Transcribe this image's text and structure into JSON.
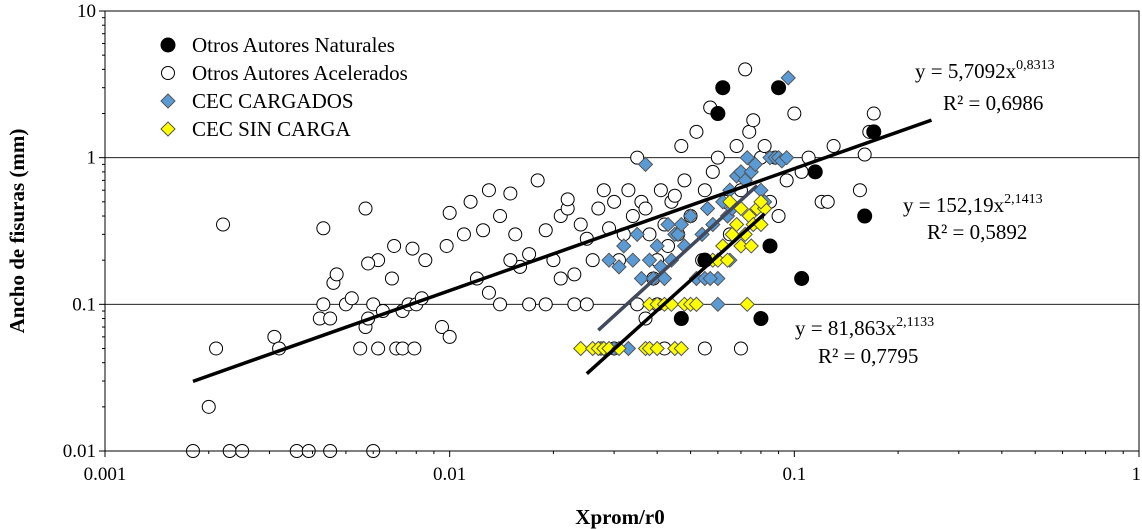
{
  "chart_data": {
    "type": "scatter",
    "xscale": "log",
    "yscale": "log",
    "xlim": [
      0.001,
      1
    ],
    "ylim": [
      0.01,
      10
    ],
    "xlabel": "Xprom/r0",
    "ylabel": "Ancho de fisuras (mm)",
    "x_tick_labels": [
      "0.001",
      "0.01",
      "0.1",
      "1"
    ],
    "y_tick_labels": [
      "0.01",
      "0.1",
      "1",
      "10"
    ],
    "legend_position": "top-left",
    "colors": {
      "naturales": "#000000",
      "acelerados": "#ffffff",
      "cargados": "#5b9bd5",
      "sin_carga": "#ffff00",
      "trend_global": "#000000",
      "trend_cargados": "#404a5c",
      "trend_sin_carga": "#000000"
    },
    "series": [
      {
        "key": "naturales",
        "name": "Otros Autores Naturales",
        "marker": "circle-filled",
        "points": [
          [
            0.047,
            0.08
          ],
          [
            0.055,
            0.2
          ],
          [
            0.06,
            2.0
          ],
          [
            0.062,
            3.0
          ],
          [
            0.08,
            0.08
          ],
          [
            0.085,
            0.25
          ],
          [
            0.09,
            3.0
          ],
          [
            0.105,
            0.15
          ],
          [
            0.115,
            0.8
          ],
          [
            0.16,
            0.4
          ],
          [
            0.17,
            1.5
          ]
        ]
      },
      {
        "key": "acelerados",
        "name": "Otros Autores Acelerados",
        "marker": "circle-open",
        "points": [
          [
            0.0018,
            0.01
          ],
          [
            0.0023,
            0.01
          ],
          [
            0.0025,
            0.01
          ],
          [
            0.0036,
            0.01
          ],
          [
            0.0039,
            0.01
          ],
          [
            0.0045,
            0.01
          ],
          [
            0.006,
            0.01
          ],
          [
            0.002,
            0.02
          ],
          [
            0.0021,
            0.05
          ],
          [
            0.0031,
            0.06
          ],
          [
            0.0032,
            0.05
          ],
          [
            0.0055,
            0.05
          ],
          [
            0.0062,
            0.05
          ],
          [
            0.007,
            0.05
          ],
          [
            0.0073,
            0.05
          ],
          [
            0.0079,
            0.05
          ],
          [
            0.0095,
            0.07
          ],
          [
            0.01,
            0.06
          ],
          [
            0.0057,
            0.07
          ],
          [
            0.0042,
            0.08
          ],
          [
            0.0045,
            0.08
          ],
          [
            0.0043,
            0.1
          ],
          [
            0.005,
            0.1
          ],
          [
            0.0052,
            0.11
          ],
          [
            0.0046,
            0.14
          ],
          [
            0.0047,
            0.16
          ],
          [
            0.0058,
            0.08
          ],
          [
            0.006,
            0.1
          ],
          [
            0.0064,
            0.09
          ],
          [
            0.0068,
            0.15
          ],
          [
            0.0073,
            0.09
          ],
          [
            0.0076,
            0.1
          ],
          [
            0.008,
            0.1
          ],
          [
            0.0083,
            0.11
          ],
          [
            0.0085,
            0.2
          ],
          [
            0.0078,
            0.24
          ],
          [
            0.0069,
            0.25
          ],
          [
            0.0062,
            0.2
          ],
          [
            0.0058,
            0.19
          ],
          [
            0.0057,
            0.45
          ],
          [
            0.0043,
            0.33
          ],
          [
            0.0022,
            0.35
          ],
          [
            0.0098,
            0.25
          ],
          [
            0.01,
            0.42
          ],
          [
            0.011,
            0.3
          ],
          [
            0.0115,
            0.5
          ],
          [
            0.0125,
            0.32
          ],
          [
            0.013,
            0.6
          ],
          [
            0.014,
            0.4
          ],
          [
            0.015,
            0.57
          ],
          [
            0.0155,
            0.3
          ],
          [
            0.016,
            0.18
          ],
          [
            0.017,
            0.22
          ],
          [
            0.018,
            0.7
          ],
          [
            0.019,
            0.32
          ],
          [
            0.02,
            0.2
          ],
          [
            0.021,
            0.4
          ],
          [
            0.022,
            0.45
          ],
          [
            0.022,
            0.52
          ],
          [
            0.023,
            0.16
          ],
          [
            0.024,
            0.35
          ],
          [
            0.025,
            0.28
          ],
          [
            0.026,
            0.2
          ],
          [
            0.027,
            0.45
          ],
          [
            0.028,
            0.6
          ],
          [
            0.029,
            0.33
          ],
          [
            0.03,
            0.5
          ],
          [
            0.031,
            0.2
          ],
          [
            0.032,
            0.3
          ],
          [
            0.033,
            0.6
          ],
          [
            0.034,
            0.4
          ],
          [
            0.035,
            1.0
          ],
          [
            0.036,
            0.5
          ],
          [
            0.037,
            0.45
          ],
          [
            0.038,
            0.3
          ],
          [
            0.039,
            0.15
          ],
          [
            0.04,
            0.2
          ],
          [
            0.041,
            0.6
          ],
          [
            0.042,
            0.35
          ],
          [
            0.043,
            0.25
          ],
          [
            0.044,
            0.5
          ],
          [
            0.045,
            0.55
          ],
          [
            0.046,
            0.3
          ],
          [
            0.047,
            1.2
          ],
          [
            0.048,
            0.7
          ],
          [
            0.05,
            0.4
          ],
          [
            0.052,
            1.5
          ],
          [
            0.054,
            0.2
          ],
          [
            0.055,
            0.6
          ],
          [
            0.057,
            2.2
          ],
          [
            0.058,
            0.8
          ],
          [
            0.06,
            1.0
          ],
          [
            0.063,
            0.5
          ],
          [
            0.065,
            0.3
          ],
          [
            0.068,
            1.2
          ],
          [
            0.07,
            0.6
          ],
          [
            0.072,
            4.0
          ],
          [
            0.074,
            1.5
          ],
          [
            0.076,
            1.8
          ],
          [
            0.078,
            0.4
          ],
          [
            0.08,
            1.0
          ],
          [
            0.082,
            1.2
          ],
          [
            0.085,
            0.5
          ],
          [
            0.088,
            1.0
          ],
          [
            0.09,
            0.4
          ],
          [
            0.095,
            0.7
          ],
          [
            0.1,
            2.0
          ],
          [
            0.105,
            0.8
          ],
          [
            0.11,
            1.0
          ],
          [
            0.12,
            0.5
          ],
          [
            0.125,
            0.5
          ],
          [
            0.13,
            1.2
          ],
          [
            0.155,
            0.6
          ],
          [
            0.16,
            1.05
          ],
          [
            0.165,
            1.5
          ],
          [
            0.17,
            2.0
          ],
          [
            0.012,
            0.15
          ],
          [
            0.013,
            0.12
          ],
          [
            0.014,
            0.1
          ],
          [
            0.015,
            0.2
          ],
          [
            0.017,
            0.1
          ],
          [
            0.019,
            0.1
          ],
          [
            0.021,
            0.15
          ],
          [
            0.023,
            0.1
          ],
          [
            0.025,
            0.1
          ],
          [
            0.0275,
            0.05
          ],
          [
            0.03,
            0.05
          ],
          [
            0.035,
            0.1
          ],
          [
            0.037,
            0.08
          ],
          [
            0.04,
            0.1
          ],
          [
            0.042,
            0.05
          ],
          [
            0.055,
            0.05
          ],
          [
            0.07,
            0.05
          ]
        ]
      },
      {
        "key": "cargados",
        "name": "CEC CARGADOS",
        "marker": "diamond",
        "points": [
          [
            0.028,
            0.05
          ],
          [
            0.029,
            0.2
          ],
          [
            0.03,
            0.05
          ],
          [
            0.031,
            0.18
          ],
          [
            0.032,
            0.25
          ],
          [
            0.033,
            0.05
          ],
          [
            0.034,
            0.2
          ],
          [
            0.035,
            0.3
          ],
          [
            0.036,
            0.15
          ],
          [
            0.037,
            0.9
          ],
          [
            0.038,
            0.2
          ],
          [
            0.039,
            0.15
          ],
          [
            0.04,
            0.25
          ],
          [
            0.041,
            0.18
          ],
          [
            0.042,
            0.15
          ],
          [
            0.043,
            0.35
          ],
          [
            0.044,
            0.2
          ],
          [
            0.045,
            0.3
          ],
          [
            0.046,
            0.3
          ],
          [
            0.047,
            0.35
          ],
          [
            0.048,
            0.25
          ],
          [
            0.05,
            0.4
          ],
          [
            0.052,
            0.15
          ],
          [
            0.054,
            0.3
          ],
          [
            0.056,
            0.45
          ],
          [
            0.058,
            0.35
          ],
          [
            0.06,
            0.15
          ],
          [
            0.062,
            0.5
          ],
          [
            0.064,
            0.4
          ],
          [
            0.065,
            0.6
          ],
          [
            0.066,
            0.45
          ],
          [
            0.068,
            0.75
          ],
          [
            0.07,
            0.8
          ],
          [
            0.072,
            0.7
          ],
          [
            0.073,
            1.0
          ],
          [
            0.075,
            0.8
          ],
          [
            0.077,
            0.9
          ],
          [
            0.08,
            0.6
          ],
          [
            0.082,
            0.5
          ],
          [
            0.085,
            1.0
          ],
          [
            0.088,
            1.0
          ],
          [
            0.09,
            1.0
          ],
          [
            0.092,
            0.95
          ],
          [
            0.095,
            1.0
          ],
          [
            0.096,
            3.5
          ],
          [
            0.052,
            0.1
          ],
          [
            0.055,
            0.15
          ],
          [
            0.057,
            0.15
          ],
          [
            0.06,
            0.1
          ],
          [
            0.065,
            0.2
          ]
        ]
      },
      {
        "key": "sin_carga",
        "name": "CEC SIN CARGA",
        "marker": "diamond",
        "points": [
          [
            0.024,
            0.05
          ],
          [
            0.026,
            0.05
          ],
          [
            0.027,
            0.05
          ],
          [
            0.028,
            0.05
          ],
          [
            0.029,
            0.05
          ],
          [
            0.031,
            0.05
          ],
          [
            0.037,
            0.05
          ],
          [
            0.038,
            0.05
          ],
          [
            0.04,
            0.05
          ],
          [
            0.045,
            0.05
          ],
          [
            0.047,
            0.05
          ],
          [
            0.038,
            0.1
          ],
          [
            0.04,
            0.1
          ],
          [
            0.042,
            0.1
          ],
          [
            0.044,
            0.1
          ],
          [
            0.048,
            0.1
          ],
          [
            0.05,
            0.1
          ],
          [
            0.052,
            0.1
          ],
          [
            0.055,
            0.2
          ],
          [
            0.058,
            0.2
          ],
          [
            0.06,
            0.2
          ],
          [
            0.062,
            0.25
          ],
          [
            0.064,
            0.2
          ],
          [
            0.066,
            0.3
          ],
          [
            0.068,
            0.35
          ],
          [
            0.07,
            0.25
          ],
          [
            0.072,
            0.3
          ],
          [
            0.074,
            0.4
          ],
          [
            0.075,
            0.25
          ],
          [
            0.076,
            0.35
          ],
          [
            0.078,
            0.45
          ],
          [
            0.08,
            0.35
          ],
          [
            0.082,
            0.45
          ],
          [
            0.07,
            0.45
          ],
          [
            0.065,
            0.5
          ],
          [
            0.073,
            0.1
          ],
          [
            0.08,
            0.5
          ]
        ]
      }
    ],
    "trendlines": [
      {
        "key": "trend_global",
        "coef": 5.7092,
        "exp": 0.8313,
        "x_range": [
          0.0018,
          0.25
        ],
        "eq_prefix": "y = 5,7092x",
        "eq_exp": "0,8313",
        "r2_label": "R² = 0,6986"
      },
      {
        "key": "trend_cargados",
        "coef": 152.19,
        "exp": 2.1413,
        "x_range": [
          0.027,
          0.078
        ],
        "eq_prefix": "y = 152,19x",
        "eq_exp": "2,1413",
        "r2_label": "R² = 0,5892"
      },
      {
        "key": "trend_sin_carga",
        "coef": 81.863,
        "exp": 2.1133,
        "x_range": [
          0.025,
          0.082
        ],
        "eq_prefix": "y = 81,863x",
        "eq_exp": "2,1133",
        "r2_label": "R² = 0,7795"
      }
    ]
  }
}
